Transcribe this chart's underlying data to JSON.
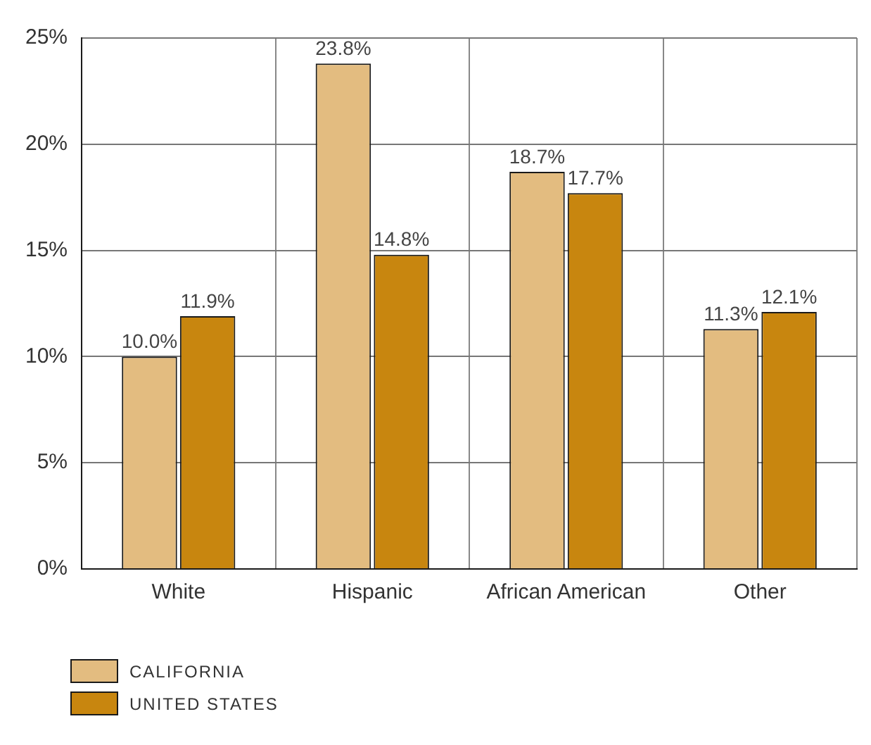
{
  "chart_data": {
    "type": "bar",
    "categories": [
      "White",
      "Hispanic",
      "African American",
      "Other"
    ],
    "series": [
      {
        "name": "CALIFORNIA",
        "color": "#e3bc80",
        "values": [
          10.0,
          23.8,
          18.7,
          11.3
        ],
        "value_labels": [
          "10.0%",
          "23.8%",
          "18.7%",
          "11.3%"
        ]
      },
      {
        "name": "UNITED STATES",
        "color": "#c8860f",
        "values": [
          11.9,
          14.8,
          17.7,
          12.1
        ],
        "value_labels": [
          "11.9%",
          "14.8%",
          "17.7%",
          "12.1%"
        ]
      }
    ],
    "ylim": [
      0,
      25
    ],
    "yticks": [
      {
        "value": 0,
        "label": "0%"
      },
      {
        "value": 5,
        "label": "5%"
      },
      {
        "value": 10,
        "label": "10%"
      },
      {
        "value": 15,
        "label": "15%"
      },
      {
        "value": 20,
        "label": "20%"
      },
      {
        "value": 25,
        "label": "25%"
      }
    ],
    "grid": true,
    "legend": "bottom left"
  }
}
